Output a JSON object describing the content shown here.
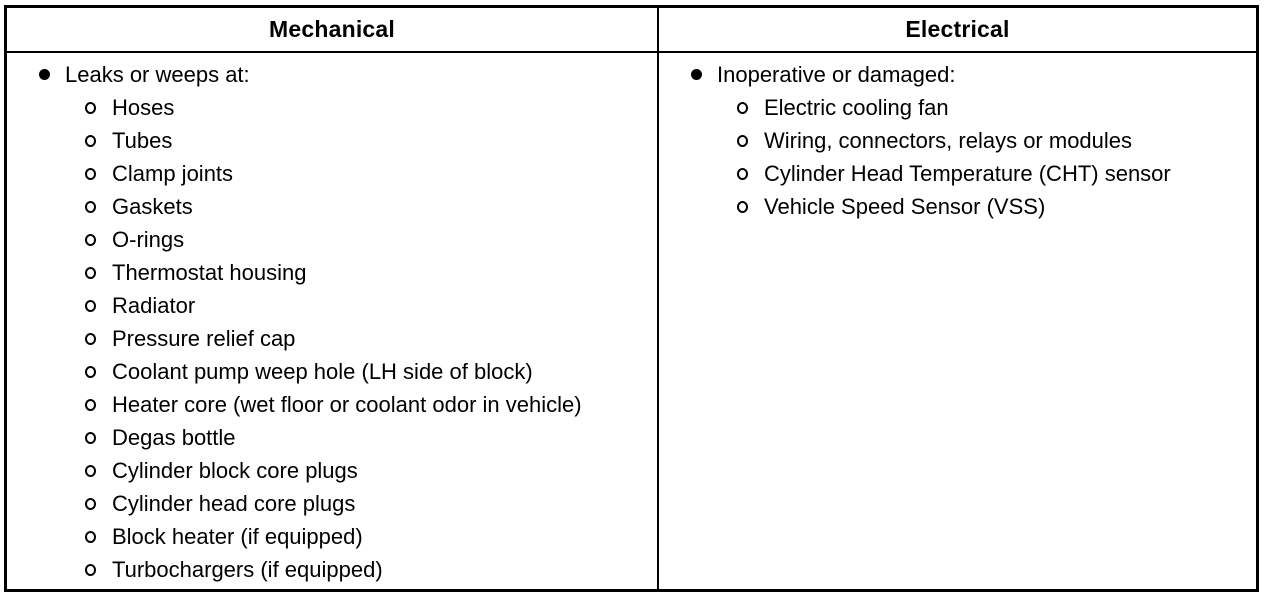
{
  "table": {
    "columns": [
      {
        "header": "Mechanical",
        "lead": "Leaks or weeps at:",
        "items": [
          "Hoses",
          "Tubes",
          "Clamp joints",
          "Gaskets",
          "O-rings",
          "Thermostat housing",
          "Radiator",
          "Pressure relief cap",
          "Coolant pump weep hole (LH side of block)",
          "Heater core (wet floor or coolant odor in vehicle)",
          "Degas bottle",
          "Cylinder block core plugs",
          "Cylinder head core plugs",
          "Block heater (if equipped)",
          "Turbochargers (if equipped)"
        ]
      },
      {
        "header": "Electrical",
        "lead": "Inoperative or damaged:",
        "items": [
          "Electric cooling fan",
          "Wiring, connectors, relays or modules",
          "Cylinder Head Temperature (CHT) sensor",
          "Vehicle Speed Sensor (VSS)"
        ]
      }
    ],
    "colors": {
      "border": "#000000",
      "background": "#ffffff",
      "text": "#000000"
    }
  }
}
